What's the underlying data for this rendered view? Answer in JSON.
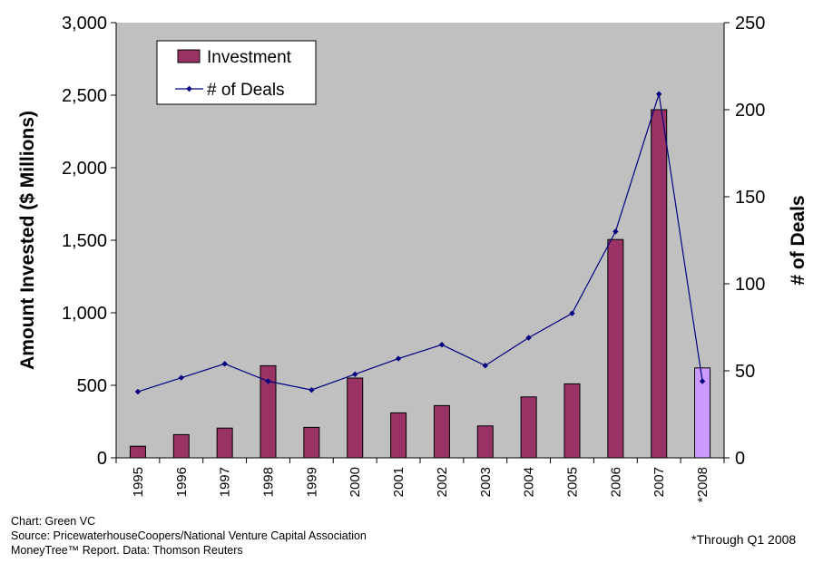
{
  "chart_data": {
    "type": "bar+line",
    "categories": [
      "1995",
      "1996",
      "1997",
      "1998",
      "1999",
      "2000",
      "2001",
      "2002",
      "2003",
      "2004",
      "2005",
      "2006",
      "2007",
      "*2008"
    ],
    "series": [
      {
        "name": "Investment",
        "type": "bar",
        "axis": "left",
        "values": [
          80,
          160,
          205,
          635,
          210,
          550,
          310,
          360,
          220,
          420,
          510,
          1505,
          2400,
          620
        ],
        "color": "#993366",
        "highlight_color": "#CC99FF"
      },
      {
        "name": "# of Deals",
        "type": "line",
        "axis": "right",
        "values": [
          38,
          46,
          54,
          44,
          39,
          48,
          57,
          65,
          53,
          69,
          83,
          130,
          209,
          44
        ],
        "color": "#000080"
      }
    ],
    "ylabel": "Amount Invested ($ Millions)",
    "y2label": "# of Deals",
    "ylim": [
      0,
      3000
    ],
    "y2lim": [
      0,
      250
    ],
    "yticks": [
      "0",
      "500",
      "1,000",
      "1,500",
      "2,000",
      "2,500",
      "3,000"
    ],
    "y2ticks": [
      "0",
      "50",
      "100",
      "150",
      "200",
      "250"
    ],
    "legend_placement": "top-left",
    "plot_background": "#C0C0C0",
    "grid": false
  },
  "footer": {
    "credit": "Chart: Green VC",
    "source_line1": "Source: PricewaterhouseCoopers/National Venture Capital Association",
    "source_line2": "MoneyTree™ Report.  Data: Thomson Reuters",
    "note": "*Through Q1 2008"
  }
}
